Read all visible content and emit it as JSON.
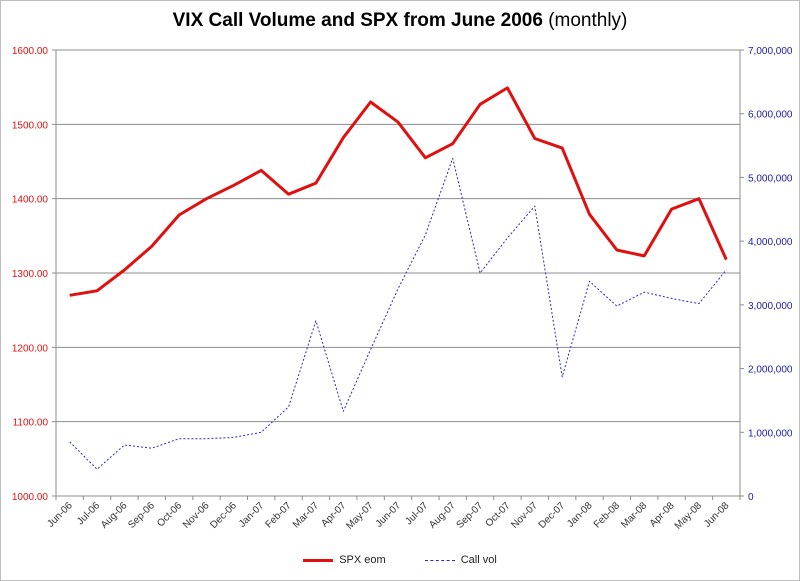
{
  "chart_data": {
    "type": "line",
    "title": "VIX Call Volume and SPX from June 2006",
    "title_suffix": "(monthly)",
    "categories": [
      "Jun-06",
      "Jul-06",
      "Aug-06",
      "Sep-06",
      "Oct-06",
      "Nov-06",
      "Dec-06",
      "Jan-07",
      "Feb-07",
      "Mar-07",
      "Apr-07",
      "May-07",
      "Jun-07",
      "Jul-07",
      "Aug-07",
      "Sep-07",
      "Oct-07",
      "Nov-07",
      "Dec-07",
      "Jan-08",
      "Feb-08",
      "Mar-08",
      "Apr-08",
      "May-08",
      "Jun-08"
    ],
    "series": [
      {
        "name": "SPX eom",
        "axis": "left",
        "color": "#e01010",
        "style": "solid",
        "values": [
          1270,
          1276,
          1304,
          1336,
          1378,
          1400,
          1418,
          1438,
          1406,
          1421,
          1482,
          1530,
          1503,
          1455,
          1474,
          1527,
          1549,
          1481,
          1468,
          1379,
          1331,
          1323,
          1386,
          1400,
          1318
        ]
      },
      {
        "name": "Call vol",
        "axis": "right",
        "color": "#2a2ac8",
        "style": "dashed",
        "values": [
          850000,
          420000,
          800000,
          750000,
          900000,
          900000,
          920000,
          1000000,
          1400000,
          2750000,
          1330000,
          2300000,
          3250000,
          4100000,
          5300000,
          3500000,
          4050000,
          4550000,
          1870000,
          3370000,
          2980000,
          3200000,
          3100000,
          3020000,
          3550000
        ]
      }
    ],
    "y_left": {
      "min": 1000,
      "max": 1600,
      "step": 100,
      "tick_labels": [
        "1000.00",
        "1100.00",
        "1200.00",
        "1300.00",
        "1400.00",
        "1500.00",
        "1600.00"
      ],
      "color": "#e01010"
    },
    "y_right": {
      "min": 0,
      "max": 7000000,
      "step": 1000000,
      "tick_labels": [
        "0",
        "1,000,000",
        "2,000,000",
        "3,000,000",
        "4,000,000",
        "5,000,000",
        "6,000,000",
        "7,000,000"
      ],
      "color": "#1a1aa8"
    },
    "xlabel": "",
    "ylabel": "",
    "grid": true,
    "legend": "bottom-center"
  }
}
